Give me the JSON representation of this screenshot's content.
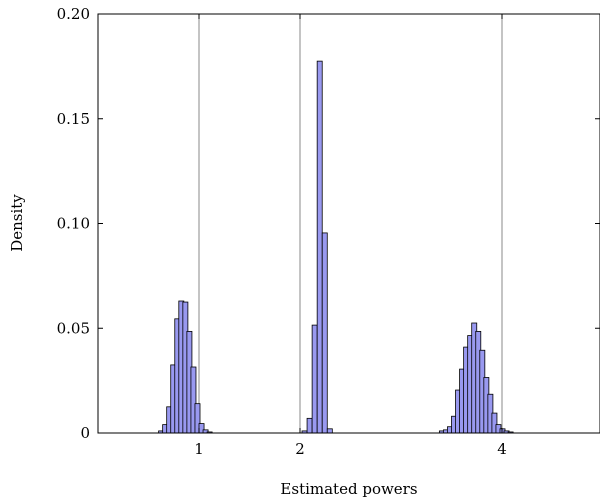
{
  "chart_data": {
    "type": "bar",
    "title": "",
    "xlabel": "Estimated powers",
    "ylabel": "Density",
    "xlim": [
      0.0,
      5.0
    ],
    "ylim": [
      0,
      0.2
    ],
    "bin_width": 0.1,
    "xticks": [
      {
        "value": 1,
        "label": "1"
      },
      {
        "value": 2,
        "label": "2"
      },
      {
        "value": 4,
        "label": "4"
      }
    ],
    "yticks": [
      {
        "value": 0,
        "label": "0"
      },
      {
        "value": 0.05,
        "label": "0.05"
      },
      {
        "value": 0.1,
        "label": "0.10"
      },
      {
        "value": 0.15,
        "label": "0.15"
      },
      {
        "value": 0.2,
        "label": "0.20"
      }
    ],
    "reference_lines_x": [
      1,
      2,
      4
    ],
    "grid": false,
    "colors": {
      "bar_fill": "#9999f0",
      "bar_stroke": "#000000",
      "reference_line": "#8a8a8a"
    },
    "bins": [
      {
        "x": 0.6,
        "y": 0.001
      },
      {
        "x": 0.64,
        "y": 0.004
      },
      {
        "x": 0.68,
        "y": 0.0125
      },
      {
        "x": 0.72,
        "y": 0.0325
      },
      {
        "x": 0.76,
        "y": 0.0545
      },
      {
        "x": 0.8,
        "y": 0.063
      },
      {
        "x": 0.84,
        "y": 0.0625
      },
      {
        "x": 0.88,
        "y": 0.0485
      },
      {
        "x": 0.92,
        "y": 0.0315
      },
      {
        "x": 0.96,
        "y": 0.014
      },
      {
        "x": 1.0,
        "y": 0.0045
      },
      {
        "x": 1.04,
        "y": 0.0015
      },
      {
        "x": 1.08,
        "y": 0.0005
      },
      {
        "x": 2.02,
        "y": 0.001
      },
      {
        "x": 2.07,
        "y": 0.007
      },
      {
        "x": 2.12,
        "y": 0.0515
      },
      {
        "x": 2.17,
        "y": 0.1775
      },
      {
        "x": 2.22,
        "y": 0.0955
      },
      {
        "x": 2.27,
        "y": 0.002
      },
      {
        "x": 3.38,
        "y": 0.001
      },
      {
        "x": 3.42,
        "y": 0.0015
      },
      {
        "x": 3.46,
        "y": 0.003
      },
      {
        "x": 3.5,
        "y": 0.008
      },
      {
        "x": 3.54,
        "y": 0.0205
      },
      {
        "x": 3.58,
        "y": 0.0305
      },
      {
        "x": 3.62,
        "y": 0.041
      },
      {
        "x": 3.66,
        "y": 0.0465
      },
      {
        "x": 3.7,
        "y": 0.0525
      },
      {
        "x": 3.74,
        "y": 0.0485
      },
      {
        "x": 3.78,
        "y": 0.0395
      },
      {
        "x": 3.82,
        "y": 0.0265
      },
      {
        "x": 3.86,
        "y": 0.0185
      },
      {
        "x": 3.9,
        "y": 0.0095
      },
      {
        "x": 3.94,
        "y": 0.004
      },
      {
        "x": 3.98,
        "y": 0.002
      },
      {
        "x": 4.02,
        "y": 0.001
      },
      {
        "x": 4.06,
        "y": 0.0005
      }
    ]
  }
}
